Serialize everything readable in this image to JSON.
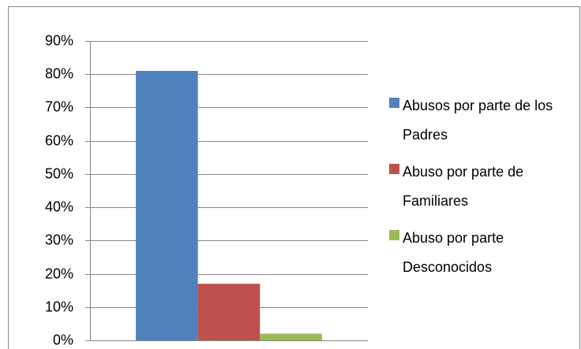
{
  "chart_data": {
    "type": "bar",
    "categories": [
      null
    ],
    "series": [
      {
        "name": "Abusos por parte de los Padres",
        "color": "#4f81bd",
        "values": [
          81
        ]
      },
      {
        "name": "Abuso por parte de Familiares",
        "color": "#c0504d",
        "values": [
          17
        ]
      },
      {
        "name": "Abuso por parte Desconocidos",
        "color": "#9bbb59",
        "values": [
          2
        ]
      }
    ],
    "ylim": [
      0,
      90
    ],
    "yticks": [
      {
        "value": 0,
        "label": "0%"
      },
      {
        "value": 10,
        "label": "10%"
      },
      {
        "value": 20,
        "label": "20%"
      },
      {
        "value": 30,
        "label": "30%"
      },
      {
        "value": 40,
        "label": "40%"
      },
      {
        "value": 50,
        "label": "50%"
      },
      {
        "value": 60,
        "label": "60%"
      },
      {
        "value": 70,
        "label": "70%"
      },
      {
        "value": 80,
        "label": "80%"
      },
      {
        "value": 90,
        "label": "90%"
      }
    ],
    "grid": true,
    "legend": "right"
  }
}
